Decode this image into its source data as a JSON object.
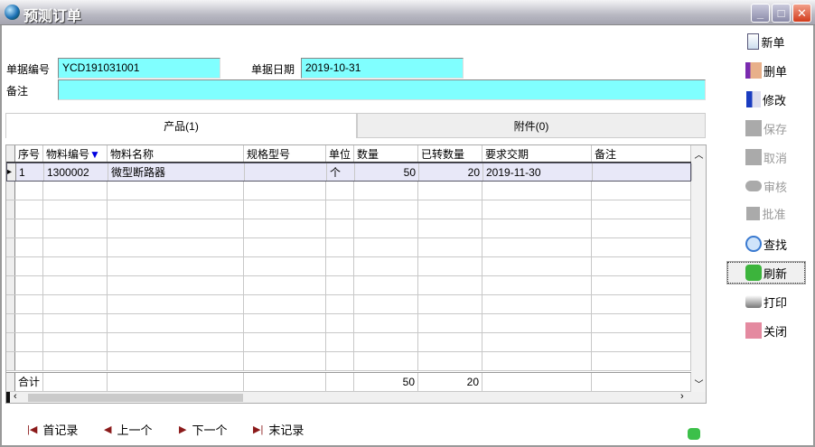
{
  "window": {
    "title": "预测订单"
  },
  "form": {
    "doc_no_label": "单据编号",
    "doc_no": "YCD191031001",
    "doc_date_label": "单据日期",
    "doc_date": "2019-10-31",
    "remark_label": "备注",
    "remark": ""
  },
  "tabs": [
    {
      "label": "产品(1)",
      "active": true
    },
    {
      "label": "附件(0)",
      "active": false
    }
  ],
  "grid": {
    "columns": [
      "序号",
      "物料编号",
      "物料名称",
      "规格型号",
      "单位",
      "数量",
      "已转数量",
      "要求交期",
      "备注"
    ],
    "sort_indicator": "▼",
    "rows": [
      {
        "seq": "1",
        "code": "1300002",
        "name": "微型断路器",
        "spec": "",
        "unit": "个",
        "qty": "50",
        "converted": "20",
        "due": "2019-11-30",
        "remark": ""
      }
    ],
    "footer": {
      "label": "合计",
      "qty": "50",
      "converted": "20"
    }
  },
  "toolbar": [
    {
      "label": "新单",
      "icon": "new-doc-icon",
      "enabled": true
    },
    {
      "label": "删单",
      "icon": "delete-doc-icon",
      "enabled": true
    },
    {
      "label": "修改",
      "icon": "edit-icon",
      "enabled": true
    },
    {
      "label": "保存",
      "icon": "save-icon",
      "enabled": false
    },
    {
      "label": "取消",
      "icon": "cancel-icon",
      "enabled": false
    },
    {
      "label": "审核",
      "icon": "audit-icon",
      "enabled": false
    },
    {
      "label": "批准",
      "icon": "approve-icon",
      "enabled": false
    },
    {
      "label": "查找",
      "icon": "search-icon",
      "enabled": true
    },
    {
      "label": "刷新",
      "icon": "refresh-icon",
      "enabled": true
    },
    {
      "label": "打印",
      "icon": "print-icon",
      "enabled": true
    },
    {
      "label": "关闭",
      "icon": "close-door-icon",
      "enabled": true
    }
  ],
  "nav": {
    "first": "首记录",
    "prev": "上一个",
    "next": "下一个",
    "last": "末记录"
  },
  "colors": {
    "input_bg": "#80ffff",
    "selected_row": "#e8e8f8"
  }
}
